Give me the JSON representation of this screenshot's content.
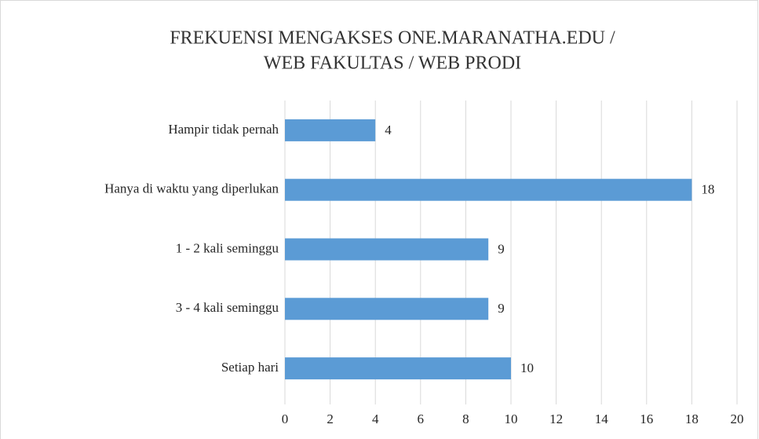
{
  "chart_data": {
    "type": "bar",
    "orientation": "horizontal",
    "title": [
      "FREKUENSI MENGAKSES ONE.MARANATHA.EDU /",
      "WEB FAKULTAS / WEB PRODI"
    ],
    "categories": [
      "Hampir tidak pernah",
      "Hanya di waktu yang diperlukan",
      "1 - 2 kali seminggu",
      "3 - 4 kali seminggu",
      "Setiap hari"
    ],
    "values": [
      4,
      18,
      9,
      9,
      10
    ],
    "color": "#5b9bd5",
    "xlim": [
      0,
      20
    ],
    "xticks": [
      0,
      2,
      4,
      6,
      8,
      10,
      12,
      14,
      16,
      18,
      20
    ],
    "grid": true,
    "data_labels": true
  }
}
